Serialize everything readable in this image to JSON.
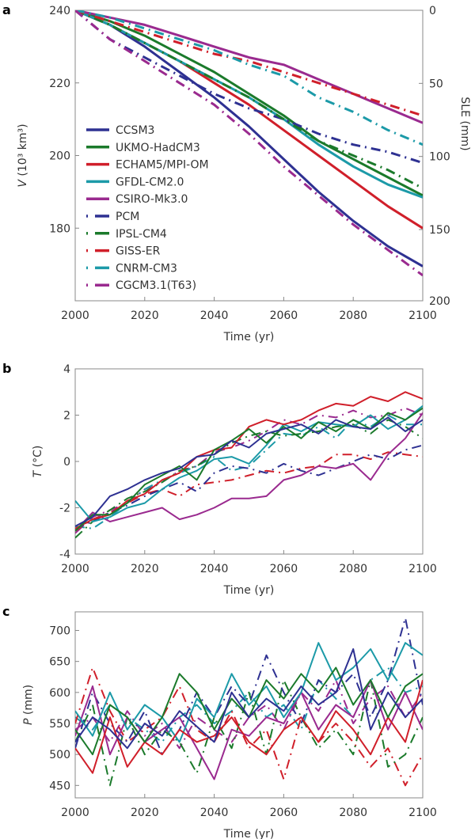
{
  "colors": {
    "CCSM3": "#2e3192",
    "UKMO-HadCM3": "#1b7a2b",
    "ECHAM5/MPI-OM": "#d01f2a",
    "GFDL-CM2.0": "#1c9aa8",
    "CSIRO-Mk3.0": "#9a2a8f",
    "PCM": "#2e3192",
    "IPSL-CM4": "#1b7a2b",
    "GISS-ER": "#d01f2a",
    "CNRM-CM3": "#1c9aa8",
    "CGCM3.1(T63)": "#9a2a8f"
  },
  "chart_data": [
    {
      "panel": "a",
      "type": "line",
      "xlabel": "Time (yr)",
      "ylabel_var": "V",
      "ylabel_unit": " (10³ km³)",
      "y2label": "SLE (mm)",
      "xlim": [
        2000,
        2100
      ],
      "ylim": [
        160,
        240
      ],
      "y2ticks": [
        0,
        50,
        100,
        150,
        200
      ],
      "xticks": [
        2000,
        2020,
        2040,
        2060,
        2080,
        2100
      ],
      "yticks": [
        180,
        200,
        220,
        240
      ],
      "legend": "left",
      "x": [
        2000,
        2010,
        2020,
        2030,
        2040,
        2050,
        2060,
        2070,
        2080,
        2090,
        2100
      ],
      "series": [
        {
          "name": "CCSM3",
          "style": "solid",
          "values": [
            240,
            236,
            230,
            223,
            216,
            208,
            199,
            190,
            182,
            175,
            169.5
          ]
        },
        {
          "name": "UKMO-HadCM3",
          "style": "solid",
          "values": [
            240,
            237,
            233,
            228,
            223,
            217,
            211,
            204,
            199,
            194,
            189
          ]
        },
        {
          "name": "ECHAM5/MPI-OM",
          "style": "solid",
          "values": [
            240,
            236,
            231,
            226,
            220,
            214,
            207,
            200,
            193,
            186,
            180
          ]
        },
        {
          "name": "GFDL-CM2.0",
          "style": "solid",
          "values": [
            240,
            236,
            231,
            226,
            221,
            216,
            210,
            203,
            197,
            192,
            188.5
          ]
        },
        {
          "name": "CSIRO-Mk3.0",
          "style": "solid",
          "values": [
            240,
            238,
            236,
            233,
            230,
            227,
            225,
            221,
            217,
            213,
            209
          ]
        },
        {
          "name": "PCM",
          "style": "dashdot",
          "values": [
            240,
            232,
            227,
            222,
            217,
            213,
            210,
            206,
            203,
            201,
            198
          ]
        },
        {
          "name": "IPSL-CM4",
          "style": "dashdot",
          "values": [
            240,
            236,
            231,
            226,
            221,
            216,
            210,
            204,
            200,
            196,
            191
          ]
        },
        {
          "name": "GISS-ER",
          "style": "dashdot",
          "values": [
            240,
            237,
            234,
            231,
            228,
            226,
            223,
            220,
            217,
            214,
            211
          ]
        },
        {
          "name": "CNRM-CM3",
          "style": "dashdot",
          "values": [
            240,
            238,
            235,
            232,
            229,
            225,
            222,
            216,
            212,
            207,
            203
          ]
        },
        {
          "name": "CGCM3.1(T63)",
          "style": "dashdot",
          "values": [
            240,
            232,
            226,
            220,
            214,
            206,
            197,
            189,
            181,
            174,
            167
          ]
        }
      ]
    },
    {
      "panel": "b",
      "type": "line",
      "xlabel": "Time (yr)",
      "ylabel_var": "T",
      "ylabel_unit": " (°C)",
      "xlim": [
        2000,
        2100
      ],
      "ylim": [
        -4,
        4
      ],
      "xticks": [
        2000,
        2020,
        2040,
        2060,
        2080,
        2100
      ],
      "yticks": [
        -4,
        -2,
        0,
        2,
        4
      ],
      "x": [
        2000,
        2005,
        2010,
        2015,
        2020,
        2025,
        2030,
        2035,
        2040,
        2045,
        2050,
        2055,
        2060,
        2065,
        2070,
        2075,
        2080,
        2085,
        2090,
        2095,
        2100
      ],
      "series": [
        {
          "name": "CCSM3",
          "style": "solid",
          "values": [
            -2.8,
            -2.4,
            -1.5,
            -1.2,
            -0.8,
            -0.5,
            -0.3,
            0.2,
            0.3,
            0.9,
            0.6,
            1.2,
            1.4,
            1.6,
            1.2,
            1.8,
            1.5,
            1.4,
            1.9,
            1.3,
            1.8
          ]
        },
        {
          "name": "UKMO-HadCM3",
          "style": "solid",
          "values": [
            -3.0,
            -2.3,
            -2.3,
            -1.8,
            -1.0,
            -0.6,
            -0.2,
            -0.8,
            0.5,
            0.9,
            1.4,
            0.8,
            1.5,
            1.0,
            1.7,
            1.3,
            1.8,
            1.4,
            2.1,
            1.8,
            2.3
          ]
        },
        {
          "name": "ECHAM5/MPI-OM",
          "style": "solid",
          "values": [
            -2.9,
            -2.5,
            -2.3,
            -1.7,
            -1.4,
            -0.8,
            -0.5,
            0.2,
            0.5,
            0.6,
            1.5,
            1.8,
            1.6,
            1.8,
            2.2,
            2.5,
            2.4,
            2.8,
            2.6,
            3.0,
            2.7
          ]
        },
        {
          "name": "GFDL-CM2.0",
          "style": "solid",
          "values": [
            -1.7,
            -2.6,
            -2.4,
            -2.0,
            -1.8,
            -1.2,
            -0.7,
            -0.4,
            0.1,
            0.2,
            -0.1,
            0.7,
            1.6,
            1.3,
            1.7,
            1.6,
            1.5,
            2.0,
            1.4,
            1.8,
            2.4
          ]
        },
        {
          "name": "CSIRO-Mk3.0",
          "style": "solid",
          "values": [
            -3.0,
            -2.2,
            -2.6,
            -2.4,
            -2.2,
            -2.0,
            -2.5,
            -2.3,
            -2.0,
            -1.6,
            -1.6,
            -1.5,
            -0.8,
            -0.6,
            -0.2,
            -0.3,
            -0.1,
            -0.8,
            0.3,
            1.0,
            2.1
          ]
        },
        {
          "name": "PCM",
          "style": "dashdot",
          "values": [
            -2.9,
            -2.6,
            -2.2,
            -1.9,
            -1.5,
            -1.2,
            -0.9,
            -1.3,
            -0.5,
            -0.2,
            -0.3,
            -0.5,
            -0.1,
            -0.4,
            -0.6,
            -0.3,
            0.0,
            0.3,
            0.1,
            0.5,
            0.7
          ]
        },
        {
          "name": "IPSL-CM4",
          "style": "dashdot",
          "values": [
            -3.3,
            -2.6,
            -2.1,
            -1.6,
            -1.3,
            -0.9,
            -0.4,
            -0.2,
            0.3,
            0.8,
            1.1,
            1.3,
            1.1,
            1.2,
            1.3,
            1.5,
            1.6,
            1.2,
            1.8,
            1.5,
            1.0
          ]
        },
        {
          "name": "GISS-ER",
          "style": "dashdot",
          "values": [
            -3.0,
            -2.5,
            -2.2,
            -1.8,
            -1.4,
            -1.2,
            -1.5,
            -1.0,
            -0.9,
            -0.8,
            -0.6,
            -0.4,
            -0.5,
            -0.3,
            -0.2,
            0.3,
            0.3,
            0.1,
            0.4,
            0.3,
            0.2
          ]
        },
        {
          "name": "CNRM-CM3",
          "style": "dashdot",
          "values": [
            -2.8,
            -2.9,
            -2.4,
            -1.8,
            -1.2,
            -0.8,
            -0.5,
            -0.2,
            0.2,
            -0.4,
            -0.2,
            0.5,
            1.2,
            1.1,
            1.5,
            1.0,
            1.8,
            1.5,
            2.0,
            1.6,
            1.6
          ]
        },
        {
          "name": "CGCM3.1(T63)",
          "style": "dashdot",
          "values": [
            -3.1,
            -2.4,
            -2.1,
            -1.8,
            -1.2,
            -0.9,
            -0.4,
            -0.2,
            0.4,
            0.6,
            0.9,
            1.3,
            1.8,
            1.6,
            2.0,
            1.9,
            2.2,
            1.9,
            2.0,
            2.3,
            2.0
          ]
        }
      ]
    },
    {
      "panel": "c",
      "type": "line",
      "xlabel": "Time (yr)",
      "ylabel_var": "P",
      "ylabel_unit": " (mm)",
      "xlim": [
        2000,
        2100
      ],
      "ylim": [
        430,
        730
      ],
      "xticks": [
        2000,
        2020,
        2040,
        2060,
        2080,
        2100
      ],
      "yticks": [
        450,
        500,
        550,
        600,
        650,
        700
      ],
      "x": [
        2000,
        2005,
        2010,
        2015,
        2020,
        2025,
        2030,
        2035,
        2040,
        2045,
        2050,
        2055,
        2060,
        2065,
        2070,
        2075,
        2080,
        2085,
        2090,
        2095,
        2100
      ],
      "series": [
        {
          "name": "CCSM3",
          "style": "solid",
          "values": [
            520,
            560,
            540,
            510,
            550,
            530,
            570,
            545,
            520,
            600,
            560,
            590,
            570,
            610,
            580,
            600,
            670,
            540,
            600,
            560,
            590
          ]
        },
        {
          "name": "UKMO-HadCM3",
          "style": "solid",
          "values": [
            540,
            500,
            580,
            560,
            520,
            560,
            630,
            600,
            540,
            590,
            560,
            620,
            590,
            630,
            600,
            640,
            580,
            620,
            560,
            610,
            630
          ]
        },
        {
          "name": "ECHAM5/MPI-OM",
          "style": "solid",
          "values": [
            510,
            470,
            560,
            480,
            520,
            500,
            540,
            520,
            530,
            560,
            520,
            500,
            540,
            560,
            520,
            570,
            540,
            500,
            560,
            520,
            620
          ]
        },
        {
          "name": "GFDL-CM2.0",
          "style": "solid",
          "values": [
            570,
            530,
            600,
            540,
            580,
            560,
            520,
            590,
            560,
            630,
            580,
            610,
            560,
            600,
            680,
            620,
            640,
            670,
            620,
            680,
            660
          ]
        },
        {
          "name": "CSIRO-Mk3.0",
          "style": "solid",
          "values": [
            530,
            610,
            500,
            560,
            520,
            540,
            560,
            510,
            460,
            540,
            530,
            560,
            550,
            600,
            540,
            580,
            560,
            620,
            540,
            600,
            540
          ]
        },
        {
          "name": "PCM",
          "style": "dashdot",
          "values": [
            510,
            600,
            550,
            520,
            570,
            500,
            540,
            600,
            560,
            610,
            580,
            660,
            600,
            550,
            620,
            600,
            630,
            560,
            620,
            720,
            580
          ]
        },
        {
          "name": "IPSL-CM4",
          "style": "dashdot",
          "values": [
            520,
            580,
            450,
            560,
            500,
            540,
            520,
            470,
            560,
            510,
            600,
            500,
            620,
            560,
            510,
            540,
            500,
            620,
            480,
            500,
            560
          ]
        },
        {
          "name": "GISS-ER",
          "style": "dashdot",
          "values": [
            550,
            640,
            570,
            520,
            540,
            560,
            610,
            540,
            520,
            570,
            510,
            540,
            460,
            560,
            520,
            550,
            520,
            480,
            510,
            450,
            500
          ]
        },
        {
          "name": "CNRM-CM3",
          "style": "dashdot",
          "values": [
            560,
            540,
            580,
            560,
            540,
            520,
            560,
            580,
            550,
            570,
            600,
            560,
            580,
            540,
            620,
            590,
            560,
            620,
            640,
            600,
            610
          ]
        },
        {
          "name": "CGCM3.1(T63)",
          "style": "dashdot",
          "values": [
            540,
            560,
            520,
            570,
            530,
            550,
            510,
            560,
            540,
            520,
            560,
            580,
            540,
            600,
            570,
            620,
            550,
            590,
            610,
            560,
            600
          ]
        }
      ]
    }
  ]
}
